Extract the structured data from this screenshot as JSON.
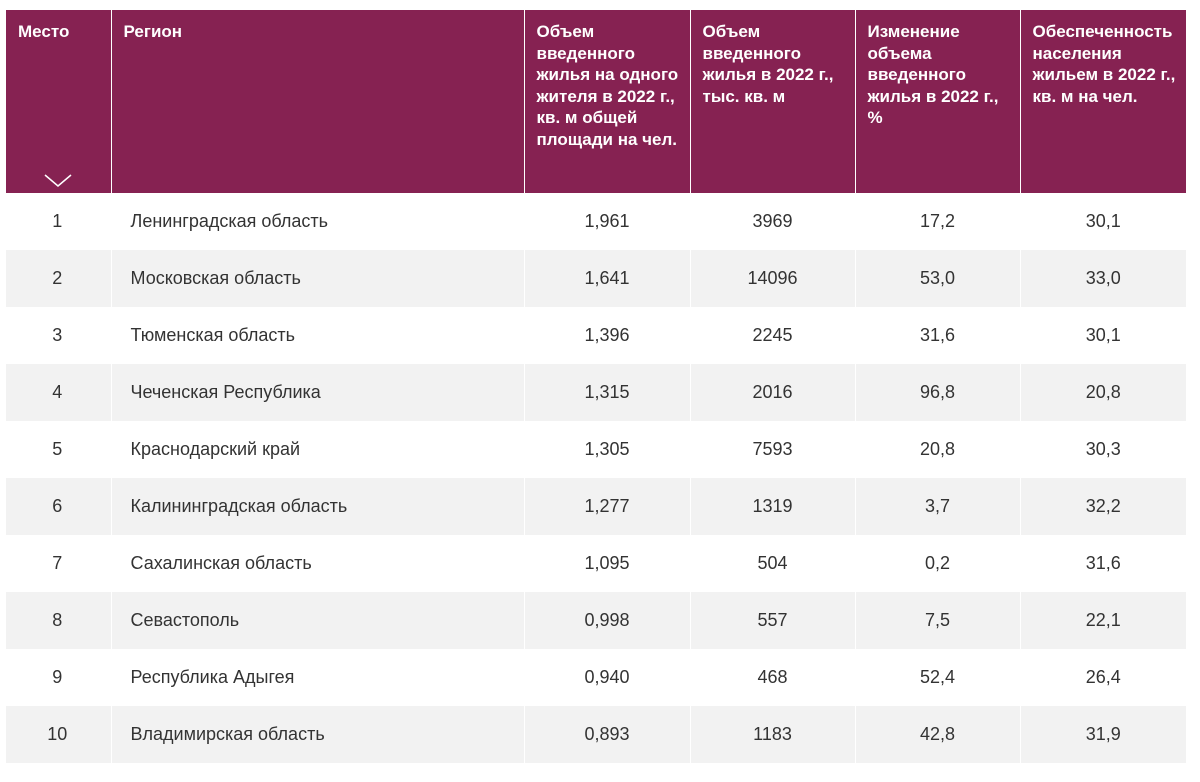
{
  "table": {
    "headers": {
      "rank": "Место",
      "region": "Регион",
      "per_capita": "Объем введенного жилья на одного жителя в 2022 г., кв. м общей площади на чел.",
      "volume": "Объем введенного жилья в 2022 г., тыс. кв. м",
      "change": "Изменение объема введенного жилья в 2022 г., %",
      "provision": "Обеспеченность населения жильем в 2022 г., кв. м на чел."
    },
    "sort_icon": "chevron-down-icon",
    "header_color": "#862252",
    "rows": [
      {
        "rank": "1",
        "region": "Ленинградская область",
        "per_capita": "1,961",
        "volume": "3969",
        "change": "17,2",
        "provision": "30,1"
      },
      {
        "rank": "2",
        "region": "Московская область",
        "per_capita": "1,641",
        "volume": "14096",
        "change": "53,0",
        "provision": "33,0"
      },
      {
        "rank": "3",
        "region": "Тюменская область",
        "per_capita": "1,396",
        "volume": "2245",
        "change": "31,6",
        "provision": "30,1"
      },
      {
        "rank": "4",
        "region": "Чеченская Республика",
        "per_capita": "1,315",
        "volume": "2016",
        "change": "96,8",
        "provision": "20,8"
      },
      {
        "rank": "5",
        "region": "Краснодарский край",
        "per_capita": "1,305",
        "volume": "7593",
        "change": "20,8",
        "provision": "30,3"
      },
      {
        "rank": "6",
        "region": "Калининградская область",
        "per_capita": "1,277",
        "volume": "1319",
        "change": "3,7",
        "provision": "32,2"
      },
      {
        "rank": "7",
        "region": "Сахалинская область",
        "per_capita": "1,095",
        "volume": "504",
        "change": "0,2",
        "provision": "31,6"
      },
      {
        "rank": "8",
        "region": "Севастополь",
        "per_capita": "0,998",
        "volume": "557",
        "change": "7,5",
        "provision": "22,1"
      },
      {
        "rank": "9",
        "region": "Республика Адыгея",
        "per_capita": "0,940",
        "volume": "468",
        "change": "52,4",
        "provision": "26,4"
      },
      {
        "rank": "10",
        "region": "Владимирская область",
        "per_capita": "0,893",
        "volume": "1183",
        "change": "42,8",
        "provision": "31,9"
      }
    ]
  }
}
